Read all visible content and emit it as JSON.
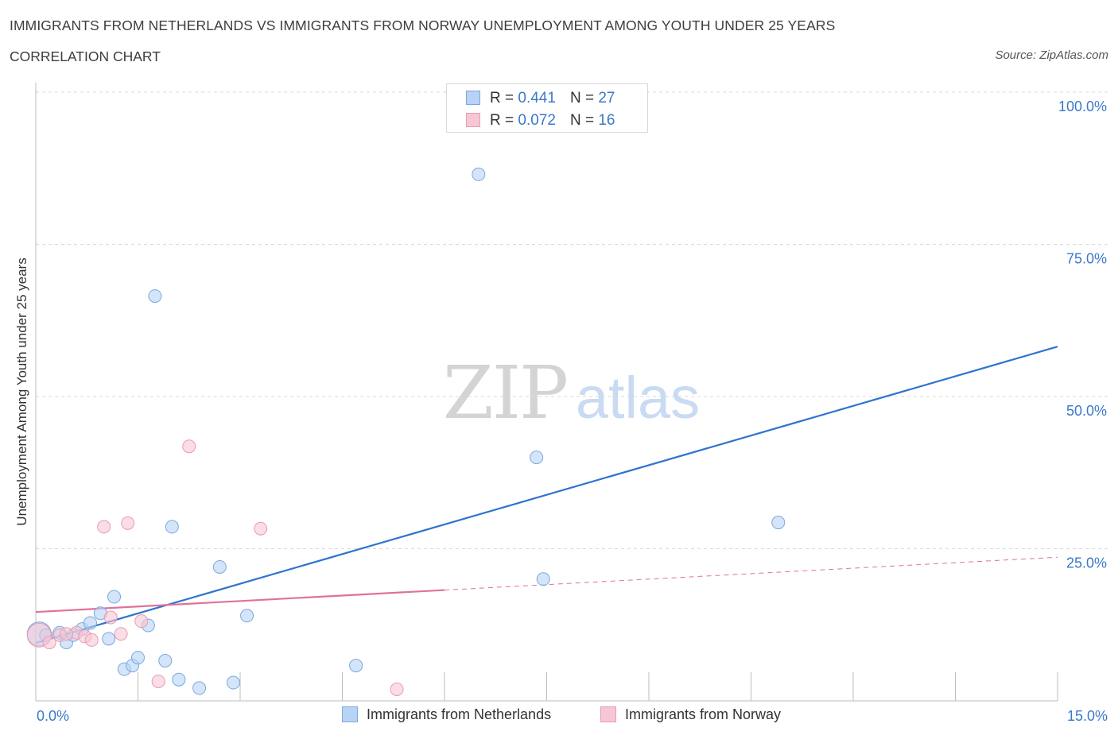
{
  "header": {
    "title": "IMMIGRANTS FROM NETHERLANDS VS IMMIGRANTS FROM NORWAY UNEMPLOYMENT AMONG YOUTH UNDER 25 YEARS",
    "subtitle": "CORRELATION CHART",
    "source": "Source: ZipAtlas.com"
  },
  "watermark": {
    "zip": "ZIP",
    "atlas": "atlas"
  },
  "legend": {
    "rows": [
      {
        "r_label": "R =",
        "r_value": "0.441",
        "n_label": "N =",
        "n_value": "27"
      },
      {
        "r_label": "R =",
        "r_value": "0.072",
        "n_label": "N =",
        "n_value": "16"
      }
    ]
  },
  "colors": {
    "netherlands_fill": "#b8d3f5",
    "netherlands_stroke": "#7aa8e0",
    "netherlands_line": "#2f74cf",
    "norway_fill": "#f7c6d4",
    "norway_stroke": "#e99ab2",
    "norway_line": "#e0719a",
    "grid": "#d9d9d9",
    "axis_text": "#3b78c8"
  },
  "chart_data": {
    "type": "scatter",
    "title": "IMMIGRANTS FROM NETHERLANDS VS IMMIGRANTS FROM NORWAY UNEMPLOYMENT AMONG YOUTH UNDER 25 YEARS",
    "subtitle": "CORRELATION CHART",
    "xlabel": "",
    "ylabel": "Unemployment Among Youth under 25 years",
    "xlim": [
      0,
      15
    ],
    "ylim": [
      0,
      100
    ],
    "x_tick_labels": [
      "0.0%",
      "15.0%"
    ],
    "y_ticks": [
      25,
      50,
      75,
      100
    ],
    "y_tick_labels": [
      "25.0%",
      "50.0%",
      "75.0%",
      "100.0%"
    ],
    "grid": true,
    "legend_position": "top-center",
    "series": [
      {
        "name": "Immigrants from Netherlands",
        "points": [
          {
            "x": 0.05,
            "y": 11.0,
            "size": "large"
          },
          {
            "x": 0.15,
            "y": 10.8
          },
          {
            "x": 0.35,
            "y": 11.2
          },
          {
            "x": 0.45,
            "y": 9.6
          },
          {
            "x": 0.55,
            "y": 10.8
          },
          {
            "x": 0.68,
            "y": 11.8
          },
          {
            "x": 0.8,
            "y": 12.8
          },
          {
            "x": 0.95,
            "y": 14.4
          },
          {
            "x": 1.07,
            "y": 10.2
          },
          {
            "x": 1.15,
            "y": 17.1
          },
          {
            "x": 1.3,
            "y": 5.2
          },
          {
            "x": 1.42,
            "y": 5.8
          },
          {
            "x": 1.5,
            "y": 7.1
          },
          {
            "x": 1.65,
            "y": 12.4
          },
          {
            "x": 1.75,
            "y": 66.5
          },
          {
            "x": 1.9,
            "y": 6.6
          },
          {
            "x": 2.0,
            "y": 28.6
          },
          {
            "x": 2.1,
            "y": 3.5
          },
          {
            "x": 2.4,
            "y": 2.1
          },
          {
            "x": 2.7,
            "y": 22.0
          },
          {
            "x": 2.9,
            "y": 3.0
          },
          {
            "x": 3.1,
            "y": 14.0
          },
          {
            "x": 4.7,
            "y": 5.8
          },
          {
            "x": 6.5,
            "y": 86.5
          },
          {
            "x": 7.35,
            "y": 40.0
          },
          {
            "x": 7.45,
            "y": 20.0
          },
          {
            "x": 10.9,
            "y": 29.3
          }
        ],
        "trend": {
          "x0": 0,
          "y0": 9.5,
          "x1": 15,
          "y1": 58.2
        }
      },
      {
        "name": "Immigrants from Norway",
        "points": [
          {
            "x": 0.05,
            "y": 10.8,
            "size": "large"
          },
          {
            "x": 0.2,
            "y": 9.6
          },
          {
            "x": 0.35,
            "y": 10.8
          },
          {
            "x": 0.6,
            "y": 11.2
          },
          {
            "x": 0.72,
            "y": 10.6
          },
          {
            "x": 0.82,
            "y": 10.0
          },
          {
            "x": 1.0,
            "y": 28.6
          },
          {
            "x": 1.1,
            "y": 13.7
          },
          {
            "x": 1.25,
            "y": 11.0
          },
          {
            "x": 1.35,
            "y": 29.2
          },
          {
            "x": 1.55,
            "y": 13.1
          },
          {
            "x": 1.8,
            "y": 3.2
          },
          {
            "x": 2.25,
            "y": 41.8
          },
          {
            "x": 3.3,
            "y": 28.3
          },
          {
            "x": 5.3,
            "y": 1.9
          },
          {
            "x": 0.45,
            "y": 11.0
          }
        ],
        "trend": {
          "x0": 0,
          "y0": 14.6,
          "x1": 15,
          "y1": 23.6,
          "solid_until_x": 6.0
        }
      }
    ]
  }
}
